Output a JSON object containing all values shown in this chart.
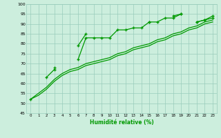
{
  "x": [
    0,
    1,
    2,
    3,
    4,
    5,
    6,
    7,
    8,
    9,
    10,
    11,
    12,
    13,
    14,
    15,
    16,
    17,
    18,
    19,
    20,
    21,
    22,
    23
  ],
  "line1_y": [
    52,
    null,
    63,
    67,
    null,
    null,
    79,
    85,
    null,
    null,
    null,
    null,
    null,
    null,
    null,
    91,
    null,
    null,
    94,
    95,
    null,
    91,
    92,
    94
  ],
  "line2_y": [
    null,
    null,
    null,
    68,
    null,
    null,
    72,
    83,
    83,
    83,
    83,
    87,
    87,
    88,
    88,
    91,
    91,
    93,
    93,
    95,
    null,
    91,
    92,
    93
  ],
  "smooth1": [
    52,
    55,
    58,
    62,
    65,
    67,
    68,
    70,
    71,
    72,
    73,
    75,
    76,
    78,
    79,
    80,
    82,
    83,
    85,
    86,
    88,
    89,
    91,
    92
  ],
  "smooth2": [
    52,
    54,
    57,
    61,
    64,
    66,
    67,
    69,
    70,
    71,
    72,
    74,
    75,
    77,
    78,
    79,
    81,
    82,
    84,
    85,
    87,
    88,
    90,
    91
  ],
  "bg_color": "#cceedd",
  "grid_color": "#99ccbb",
  "line_color": "#009900",
  "xlabel": "Humidité relative (%)",
  "ylim": [
    45,
    100
  ],
  "xlim": [
    -0.5,
    23.5
  ],
  "yticks": [
    45,
    50,
    55,
    60,
    65,
    70,
    75,
    80,
    85,
    90,
    95,
    100
  ],
  "xticks": [
    0,
    1,
    2,
    3,
    4,
    5,
    6,
    7,
    8,
    9,
    10,
    11,
    12,
    13,
    14,
    15,
    16,
    17,
    18,
    19,
    20,
    21,
    22,
    23
  ]
}
